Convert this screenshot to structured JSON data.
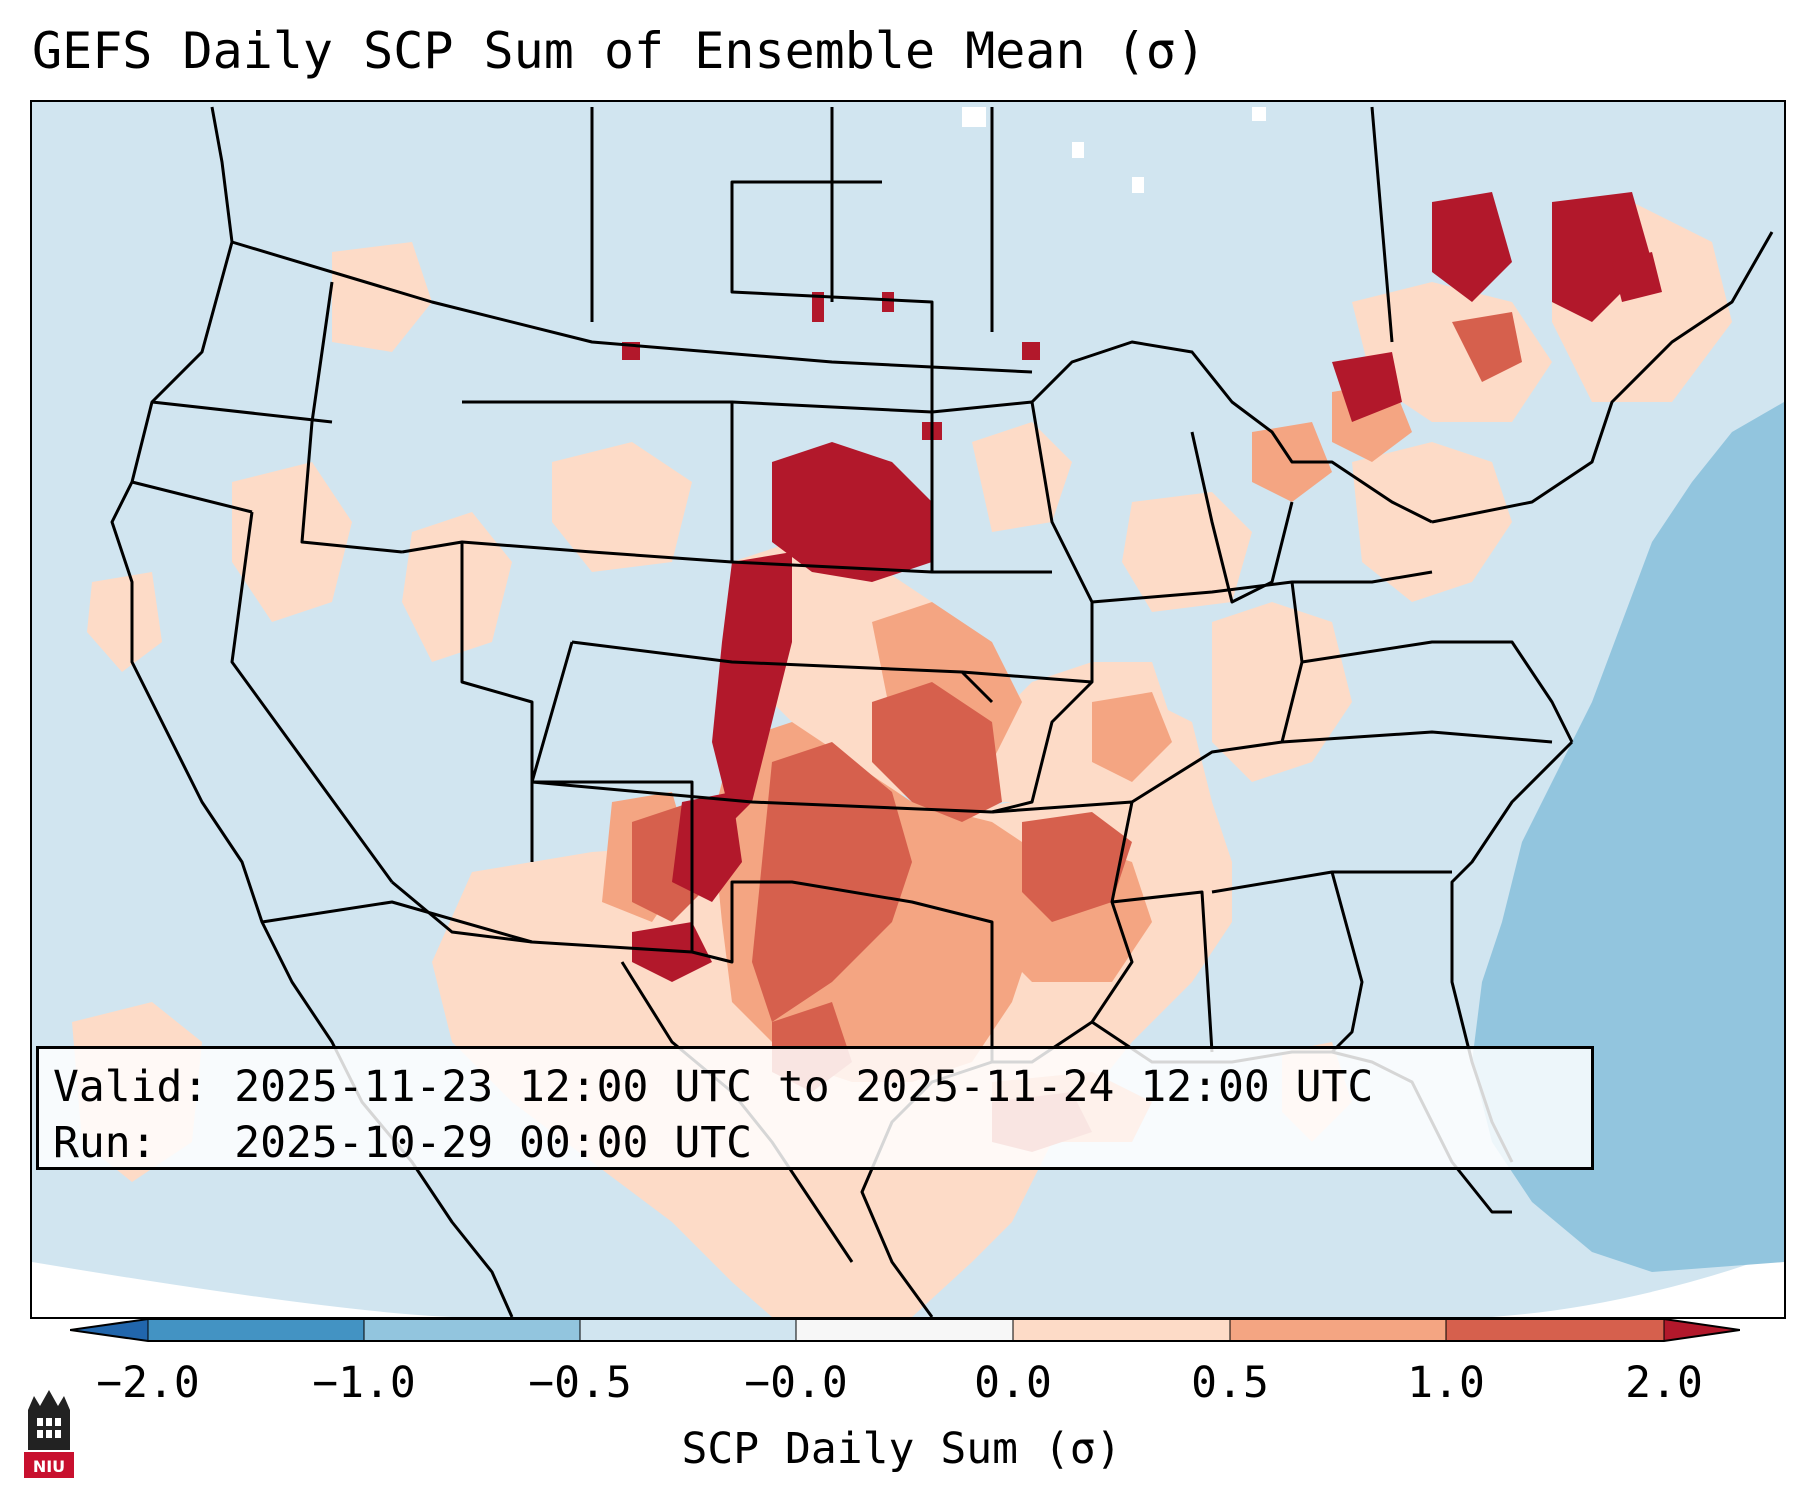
{
  "title": "GEFS Daily SCP Sum of Ensemble Mean (σ)",
  "info": {
    "valid_label": "Valid:",
    "valid_range": "2025-11-23 12:00 UTC to 2025-11-24 12:00 UTC",
    "run_label": "Run:",
    "run_time": "2025-10-29 00:00 UTC"
  },
  "colorbar": {
    "label": "SCP Daily Sum (σ)",
    "ticks": [
      "−2.0",
      "−1.0",
      "−0.5",
      "−0.0",
      "0.0",
      "0.5",
      "1.0",
      "2.0"
    ],
    "colors": {
      "extend_low": "#2166ac",
      "c_neg2_neg1": "#4393c3",
      "c_neg1_neg05": "#92c5de",
      "c_neg05_0": "#d1e5f0",
      "c_0_05": "#fddbc7",
      "c_05_1": "#f4a582",
      "c_1_2": "#d6604d",
      "extend_high": "#b2182b"
    }
  },
  "logo": {
    "text": "NIU",
    "color": "#c8102e"
  }
}
